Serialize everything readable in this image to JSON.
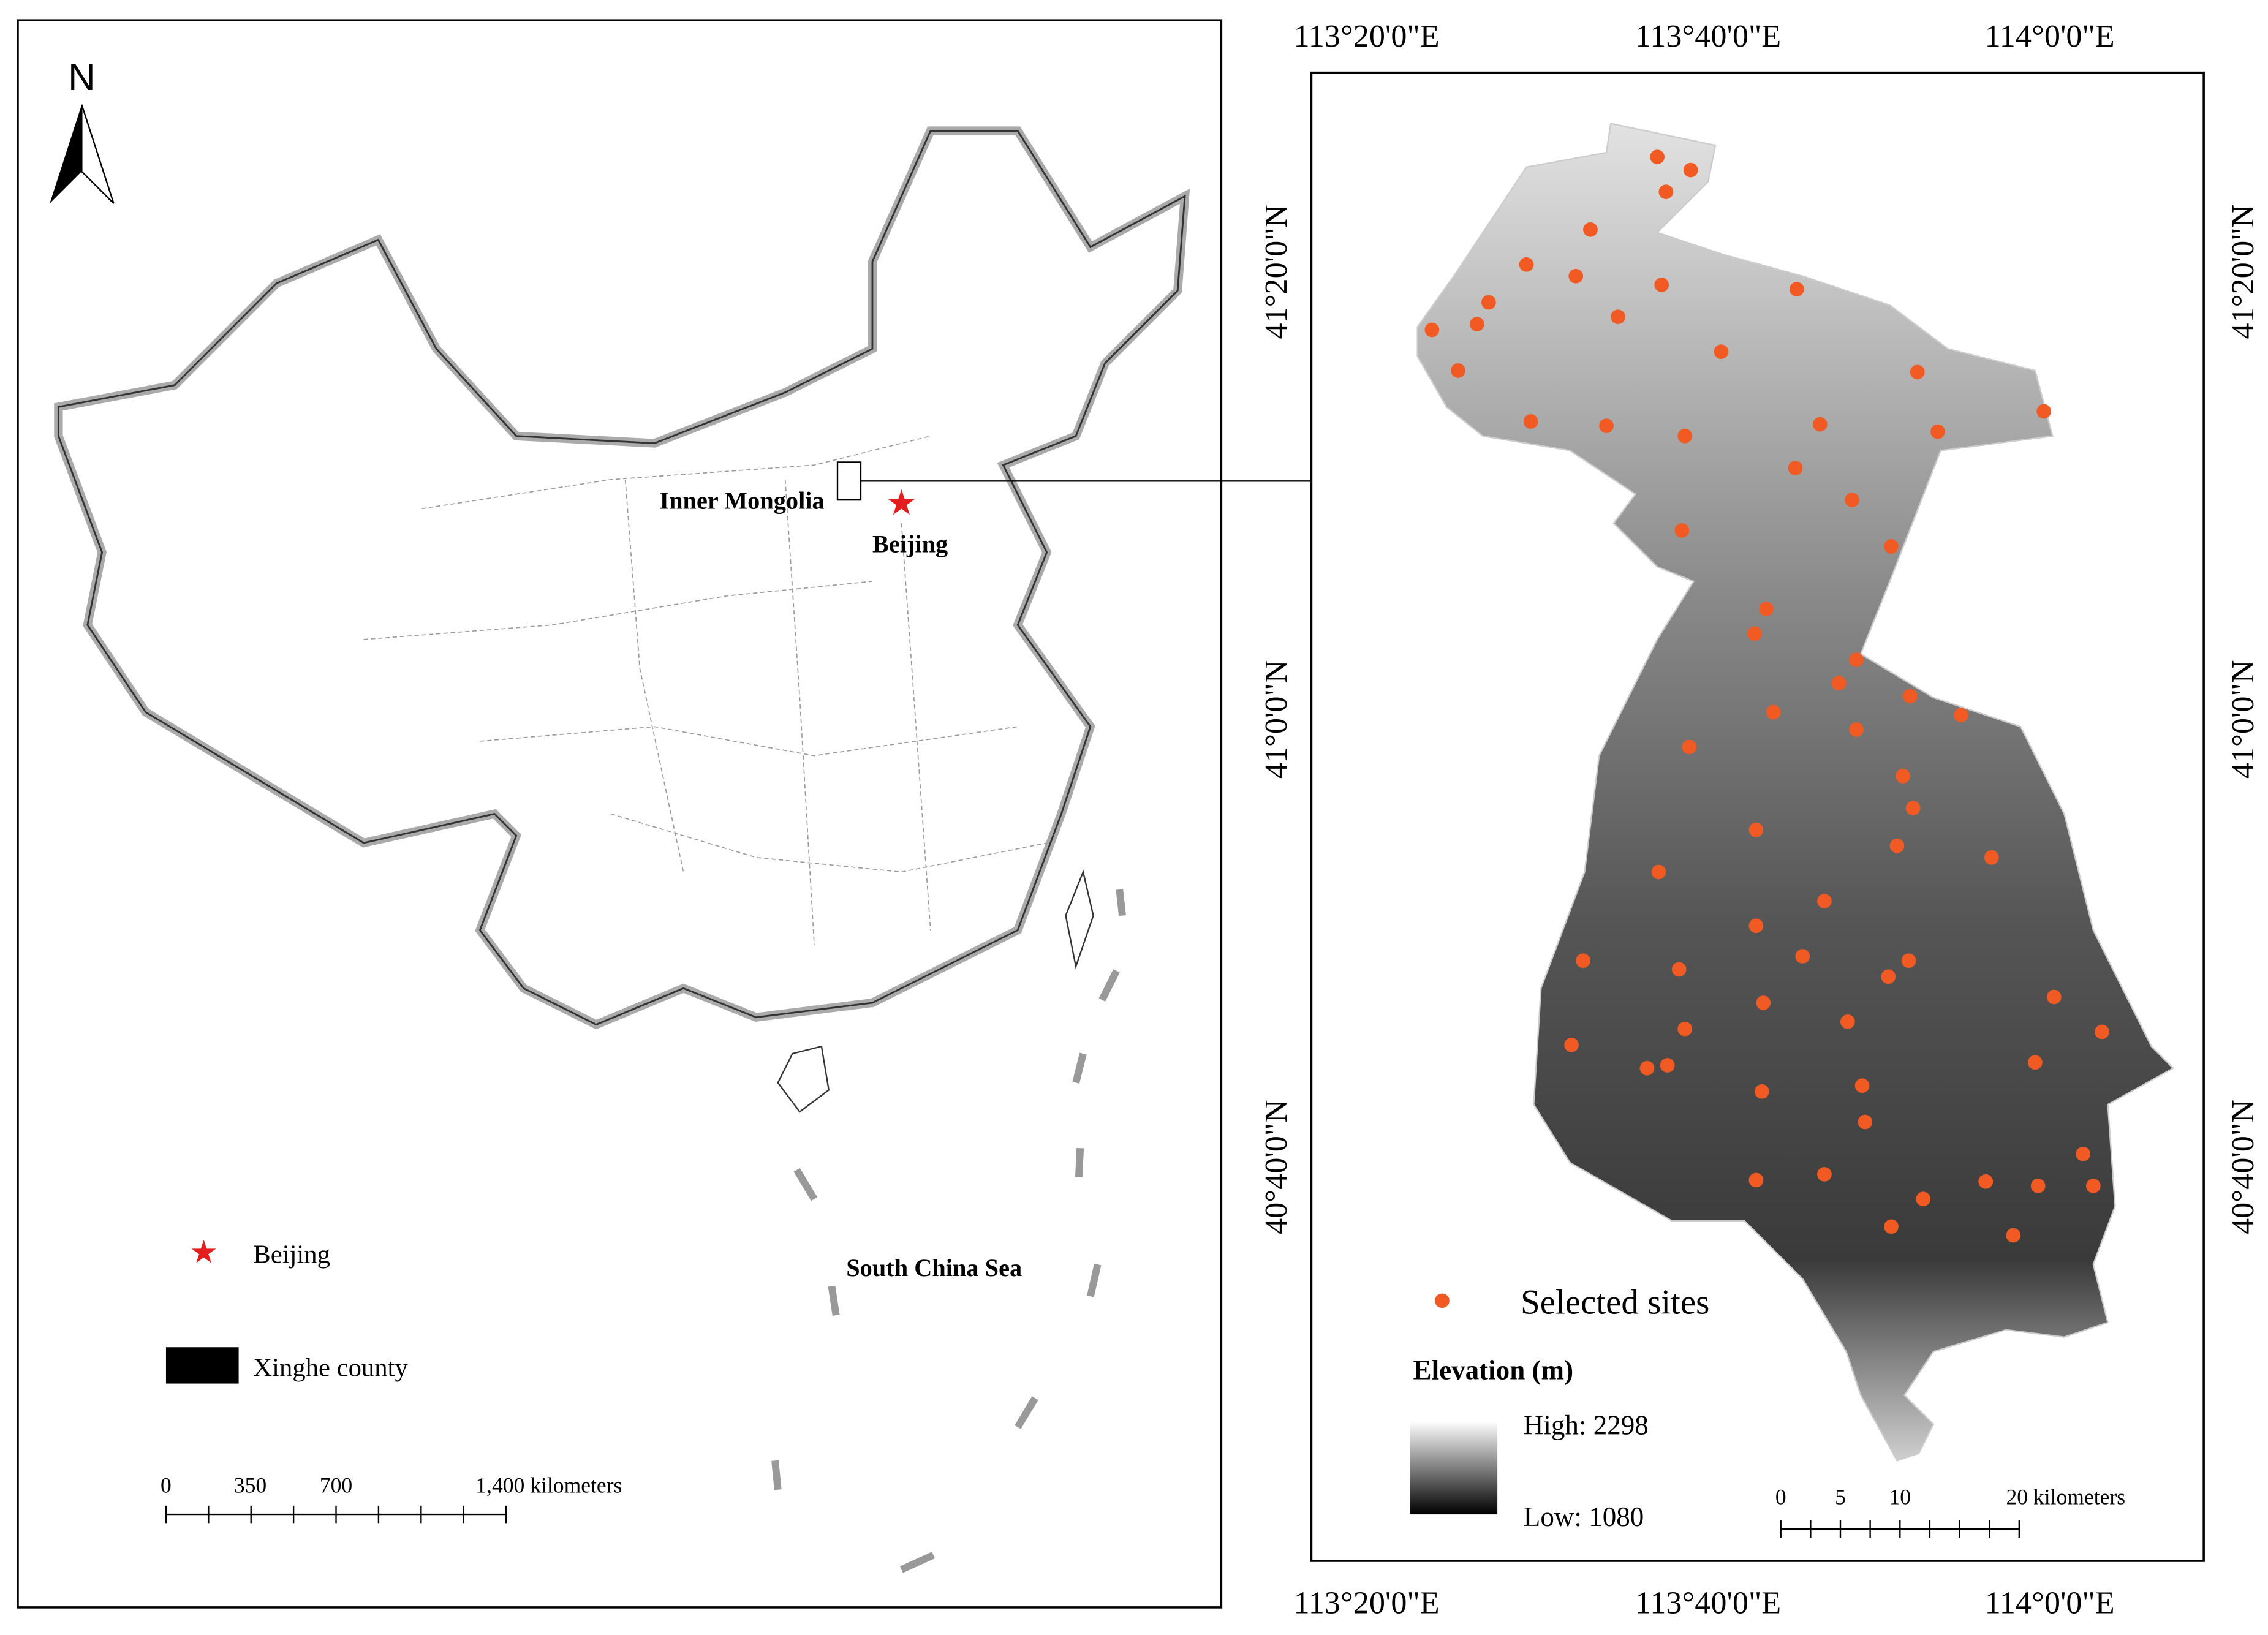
{
  "left_panel": {
    "north": "N",
    "labels": {
      "inner_mongolia": "Inner Mongolia",
      "beijing": "Beijing",
      "south_china_sea": "South China Sea"
    },
    "legend": [
      "Beijing",
      "Xinghe county"
    ],
    "scale_bar": [
      "0",
      "350",
      "700",
      "1,400 kilometers"
    ]
  },
  "right_panel": {
    "lon_labels": [
      "113°20'0\"E",
      "113°40'0\"E",
      "114°0'0\"E"
    ],
    "lat_labels": [
      "41°20'0\"N",
      "41°0'0\"N",
      "40°40'0\"N"
    ],
    "legend": {
      "sites": "Selected sites",
      "elevation_title": "Elevation (m)",
      "high": "High: 2298",
      "low": "Low: 1080"
    },
    "scale_bar": [
      "0",
      "5",
      "10",
      "20 kilometers"
    ]
  }
}
